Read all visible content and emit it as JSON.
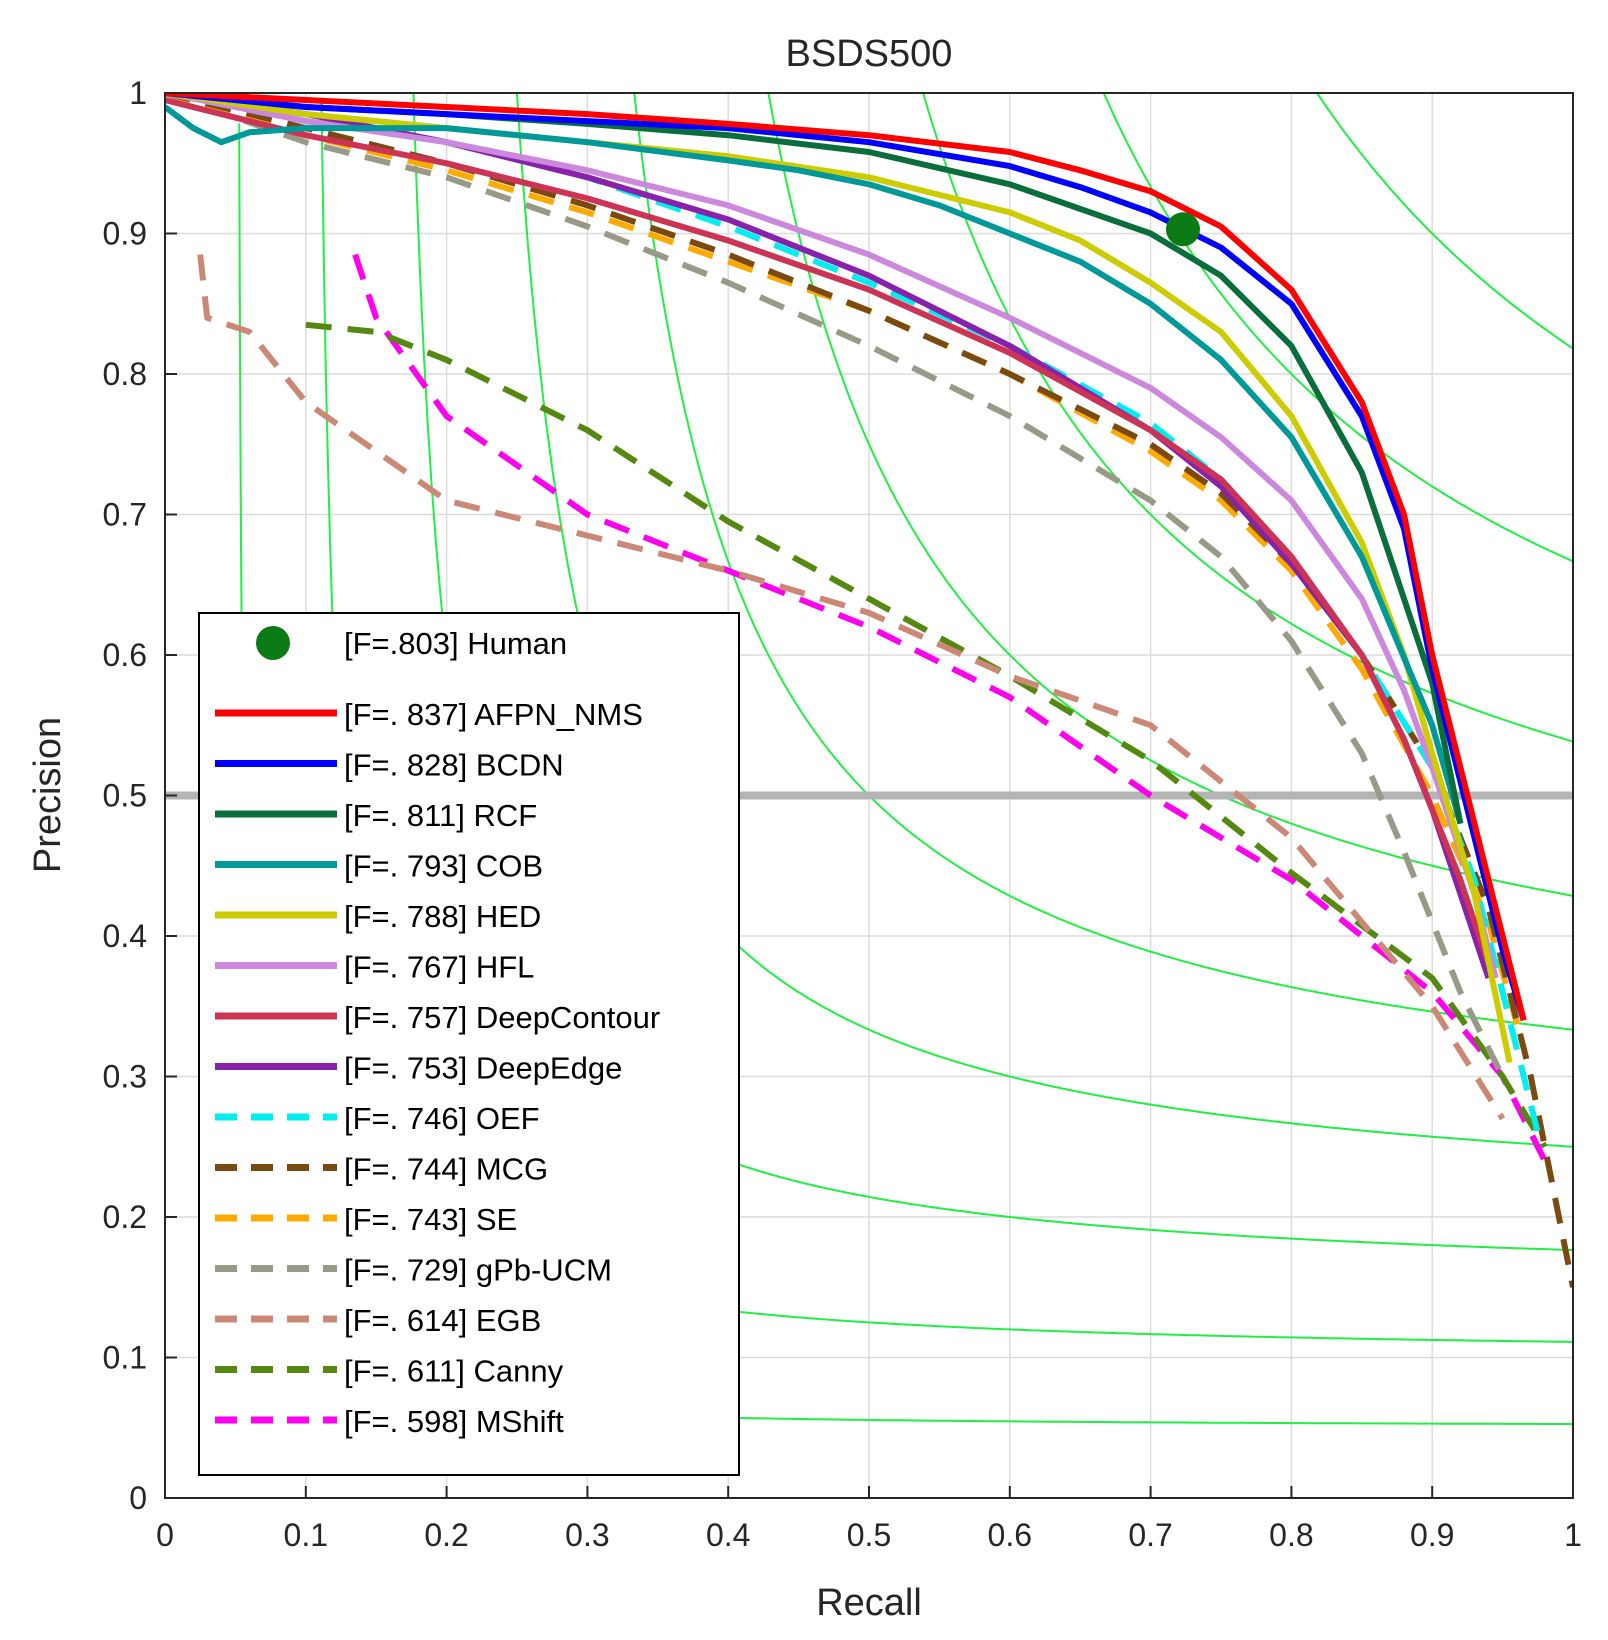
{
  "chart_data": {
    "type": "line",
    "title": "BSDS500",
    "xlabel": "Recall",
    "ylabel": "Precision",
    "xlim": [
      0,
      1
    ],
    "ylim": [
      0,
      1
    ],
    "xticks": [
      "0",
      "0.1",
      "0.2",
      "0.3",
      "0.4",
      "0.5",
      "0.6",
      "0.7",
      "0.8",
      "0.9",
      "1"
    ],
    "yticks": [
      "0",
      "0.1",
      "0.2",
      "0.3",
      "0.4",
      "0.5",
      "0.6",
      "0.7",
      "0.8",
      "0.9",
      "1"
    ],
    "grid": true,
    "legend_position": "bottom-left",
    "reference_line": {
      "y": 0.5,
      "color": "#b4b4b4"
    },
    "iso_f_color": "#22ee44",
    "iso_f_values": [
      0.1,
      0.2,
      0.3,
      0.4,
      0.5,
      0.6,
      0.7,
      0.8,
      0.9
    ],
    "human": {
      "label": "[F=.803] Human",
      "recall": 0.723,
      "precision": 0.903,
      "color": "#0a7a14"
    },
    "series": [
      {
        "name": "AFPN_NMS",
        "label": "[F=. 837] AFPN_NMS",
        "color": "#ff0000",
        "dashed": false,
        "recall": [
          0.0,
          0.1,
          0.2,
          0.3,
          0.4,
          0.5,
          0.6,
          0.65,
          0.7,
          0.75,
          0.8,
          0.85,
          0.88,
          0.9,
          0.92,
          0.95,
          0.965
        ],
        "precision": [
          1.0,
          0.995,
          0.99,
          0.985,
          0.978,
          0.97,
          0.958,
          0.945,
          0.93,
          0.905,
          0.86,
          0.78,
          0.7,
          0.6,
          0.52,
          0.4,
          0.34
        ]
      },
      {
        "name": "BCDN",
        "label": "[F=. 828] BCDN",
        "color": "#0000ff",
        "dashed": false,
        "recall": [
          0.0,
          0.1,
          0.2,
          0.3,
          0.4,
          0.5,
          0.6,
          0.65,
          0.7,
          0.75,
          0.8,
          0.85,
          0.88,
          0.9,
          0.92,
          0.95,
          0.965
        ],
        "precision": [
          1.0,
          0.99,
          0.985,
          0.98,
          0.975,
          0.965,
          0.948,
          0.933,
          0.915,
          0.89,
          0.85,
          0.77,
          0.69,
          0.59,
          0.51,
          0.39,
          0.34
        ]
      },
      {
        "name": "RCF",
        "label": "[F=. 811] RCF",
        "color": "#0a6e3c",
        "dashed": false,
        "recall": [
          0.0,
          0.1,
          0.2,
          0.3,
          0.4,
          0.5,
          0.6,
          0.7,
          0.75,
          0.8,
          0.85,
          0.9,
          0.92
        ],
        "precision": [
          1.0,
          0.99,
          0.985,
          0.978,
          0.97,
          0.958,
          0.935,
          0.9,
          0.87,
          0.82,
          0.73,
          0.58,
          0.48
        ]
      },
      {
        "name": "COB",
        "label": "[F=. 793] COB",
        "color": "#009999",
        "dashed": false,
        "recall": [
          0.0,
          0.02,
          0.04,
          0.06,
          0.1,
          0.2,
          0.3,
          0.4,
          0.45,
          0.5,
          0.55,
          0.6,
          0.65,
          0.7,
          0.75,
          0.8,
          0.85,
          0.9,
          0.92
        ],
        "precision": [
          0.99,
          0.975,
          0.965,
          0.972,
          0.975,
          0.975,
          0.965,
          0.952,
          0.945,
          0.935,
          0.92,
          0.9,
          0.88,
          0.85,
          0.81,
          0.755,
          0.67,
          0.55,
          0.48
        ]
      },
      {
        "name": "HED",
        "label": "[F=. 788] HED",
        "color": "#cccc00",
        "dashed": false,
        "recall": [
          0.0,
          0.1,
          0.2,
          0.3,
          0.4,
          0.5,
          0.6,
          0.65,
          0.7,
          0.75,
          0.8,
          0.85,
          0.88,
          0.9,
          0.93,
          0.955
        ],
        "precision": [
          1.0,
          0.985,
          0.975,
          0.965,
          0.955,
          0.94,
          0.915,
          0.895,
          0.865,
          0.83,
          0.77,
          0.68,
          0.6,
          0.53,
          0.43,
          0.31
        ]
      },
      {
        "name": "HFL",
        "label": "[F=. 767] HFL",
        "color": "#cc88dd",
        "dashed": false,
        "recall": [
          0.0,
          0.1,
          0.2,
          0.3,
          0.4,
          0.5,
          0.6,
          0.7,
          0.75,
          0.8,
          0.85,
          0.88,
          0.9,
          0.93,
          0.945
        ],
        "precision": [
          1.0,
          0.98,
          0.965,
          0.945,
          0.92,
          0.885,
          0.84,
          0.79,
          0.755,
          0.71,
          0.64,
          0.575,
          0.52,
          0.43,
          0.37
        ]
      },
      {
        "name": "DeepContour",
        "label": "[F=. 757] DeepContour",
        "color": "#cc3355",
        "dashed": false,
        "recall": [
          0.0,
          0.1,
          0.2,
          0.3,
          0.4,
          0.5,
          0.6,
          0.7,
          0.75,
          0.8,
          0.85,
          0.88,
          0.9,
          0.92,
          0.94
        ],
        "precision": [
          0.995,
          0.97,
          0.95,
          0.925,
          0.895,
          0.86,
          0.815,
          0.76,
          0.725,
          0.67,
          0.6,
          0.54,
          0.49,
          0.44,
          0.38
        ]
      },
      {
        "name": "DeepEdge",
        "label": "[F=. 753] DeepEdge",
        "color": "#8822aa",
        "dashed": false,
        "recall": [
          0.0,
          0.1,
          0.2,
          0.3,
          0.4,
          0.5,
          0.6,
          0.7,
          0.75,
          0.8,
          0.85,
          0.88,
          0.9,
          0.92,
          0.94
        ],
        "precision": [
          1.0,
          0.985,
          0.965,
          0.94,
          0.91,
          0.87,
          0.82,
          0.76,
          0.72,
          0.665,
          0.6,
          0.54,
          0.49,
          0.43,
          0.37
        ]
      },
      {
        "name": "OEF",
        "label": "[F=. 746] OEF",
        "color": "#00eeee",
        "dashed": true,
        "recall": [
          0.0,
          0.1,
          0.2,
          0.3,
          0.4,
          0.5,
          0.6,
          0.7,
          0.75,
          0.8,
          0.85,
          0.9,
          0.93,
          0.96,
          0.975
        ],
        "precision": [
          1.0,
          0.98,
          0.965,
          0.94,
          0.905,
          0.865,
          0.82,
          0.765,
          0.725,
          0.67,
          0.6,
          0.52,
          0.44,
          0.32,
          0.26
        ]
      },
      {
        "name": "MCG",
        "label": "[F=. 744] MCG",
        "color": "#7a4a10",
        "dashed": true,
        "recall": [
          0.0,
          0.1,
          0.2,
          0.3,
          0.4,
          0.5,
          0.6,
          0.7,
          0.75,
          0.8,
          0.85,
          0.9,
          0.94,
          0.97,
          0.99,
          1.0
        ],
        "precision": [
          1.0,
          0.975,
          0.95,
          0.92,
          0.885,
          0.845,
          0.8,
          0.75,
          0.715,
          0.665,
          0.6,
          0.52,
          0.42,
          0.3,
          0.2,
          0.15
        ]
      },
      {
        "name": "SE",
        "label": "[F=. 743] SE",
        "color": "#ffaa00",
        "dashed": true,
        "recall": [
          0.0,
          0.1,
          0.2,
          0.3,
          0.4,
          0.5,
          0.6,
          0.7,
          0.75,
          0.8,
          0.85,
          0.9,
          0.94,
          0.965
        ],
        "precision": [
          1.0,
          0.97,
          0.945,
          0.915,
          0.88,
          0.845,
          0.8,
          0.745,
          0.71,
          0.66,
          0.59,
          0.5,
          0.41,
          0.32
        ]
      },
      {
        "name": "gPb-UCM",
        "label": "[F=. 729] gPb-UCM",
        "color": "#999988",
        "dashed": true,
        "recall": [
          0.0,
          0.1,
          0.2,
          0.3,
          0.4,
          0.5,
          0.6,
          0.7,
          0.75,
          0.8,
          0.85,
          0.88,
          0.9,
          0.92,
          0.95
        ],
        "precision": [
          1.0,
          0.965,
          0.94,
          0.905,
          0.865,
          0.82,
          0.77,
          0.71,
          0.67,
          0.61,
          0.53,
          0.46,
          0.41,
          0.36,
          0.3
        ]
      },
      {
        "name": "EGB",
        "label": "[F=. 614] EGB",
        "color": "#cc8877",
        "dashed": true,
        "recall": [
          0.025,
          0.03,
          0.06,
          0.1,
          0.2,
          0.3,
          0.4,
          0.5,
          0.6,
          0.7,
          0.8,
          0.9,
          0.95
        ],
        "precision": [
          0.885,
          0.84,
          0.83,
          0.78,
          0.71,
          0.685,
          0.66,
          0.63,
          0.585,
          0.55,
          0.47,
          0.35,
          0.27
        ]
      },
      {
        "name": "Canny",
        "label": "[F=. 611] Canny",
        "color": "#558811",
        "dashed": true,
        "recall": [
          0.1,
          0.15,
          0.2,
          0.3,
          0.4,
          0.5,
          0.6,
          0.7,
          0.8,
          0.9,
          0.95,
          0.98
        ],
        "precision": [
          0.835,
          0.83,
          0.81,
          0.76,
          0.695,
          0.64,
          0.585,
          0.525,
          0.445,
          0.37,
          0.3,
          0.25
        ]
      },
      {
        "name": "MShift",
        "label": "[F=. 598] MShift",
        "color": "#ff00ee",
        "dashed": true,
        "recall": [
          0.135,
          0.15,
          0.2,
          0.3,
          0.4,
          0.5,
          0.6,
          0.7,
          0.8,
          0.9,
          0.95,
          0.98
        ],
        "precision": [
          0.885,
          0.84,
          0.77,
          0.7,
          0.66,
          0.62,
          0.57,
          0.5,
          0.44,
          0.36,
          0.3,
          0.24
        ]
      }
    ]
  }
}
